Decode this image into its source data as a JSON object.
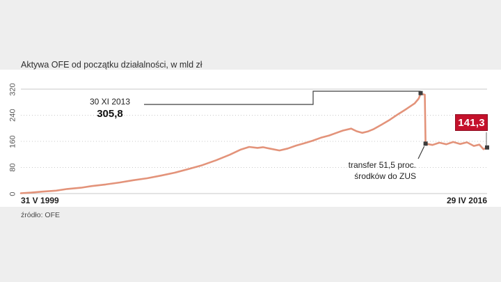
{
  "title": "Aktywa OFE od początku działalności, w mld zł",
  "source": "źródło: OFE",
  "x_axis": {
    "start_label": "31 V 1999",
    "end_label": "29 IV 2016"
  },
  "y_axis": {
    "ticks": [
      0,
      80,
      160,
      240,
      320
    ]
  },
  "annotations": {
    "peak": {
      "date": "30 XI 2013",
      "value": "305,8"
    },
    "transfer": {
      "line1": "transfer 51,5 proc.",
      "line2": "środków do ZUS"
    },
    "end_badge": {
      "value": "141,3",
      "color": "#c4112b"
    }
  },
  "colors": {
    "line": "#e3937a",
    "marker": "#3d3d3d",
    "grid": "#c8c8c8",
    "callout": "#3d3d3d"
  },
  "chart_data": {
    "type": "line",
    "title": "Aktywa OFE od początku działalności, w mld zł",
    "ylabel": "mld zł",
    "ylim": [
      0,
      320
    ],
    "x_range": [
      "31 V 1999",
      "29 IV 2016"
    ],
    "grid": "horizontal",
    "legend": "none",
    "series": [
      {
        "name": "Aktywa OFE",
        "color": "#e3937a",
        "points": [
          [
            1999.42,
            1
          ],
          [
            1999.8,
            3
          ],
          [
            2000.2,
            6
          ],
          [
            2000.7,
            9
          ],
          [
            2001.1,
            14
          ],
          [
            2001.6,
            18
          ],
          [
            2002.0,
            23
          ],
          [
            2002.5,
            28
          ],
          [
            2003.0,
            34
          ],
          [
            2003.5,
            41
          ],
          [
            2004.0,
            47
          ],
          [
            2004.5,
            55
          ],
          [
            2005.0,
            64
          ],
          [
            2005.5,
            75
          ],
          [
            2006.0,
            87
          ],
          [
            2006.5,
            102
          ],
          [
            2007.0,
            119
          ],
          [
            2007.4,
            135
          ],
          [
            2007.7,
            143
          ],
          [
            2008.0,
            140
          ],
          [
            2008.2,
            142
          ],
          [
            2008.5,
            137
          ],
          [
            2008.8,
            132
          ],
          [
            2009.1,
            138
          ],
          [
            2009.4,
            147
          ],
          [
            2009.7,
            154
          ],
          [
            2010.0,
            162
          ],
          [
            2010.3,
            171
          ],
          [
            2010.6,
            178
          ],
          [
            2010.9,
            187
          ],
          [
            2011.1,
            193
          ],
          [
            2011.4,
            199
          ],
          [
            2011.6,
            191
          ],
          [
            2011.8,
            186
          ],
          [
            2012.0,
            190
          ],
          [
            2012.2,
            197
          ],
          [
            2012.5,
            211
          ],
          [
            2012.8,
            226
          ],
          [
            2013.1,
            243
          ],
          [
            2013.4,
            259
          ],
          [
            2013.7,
            276
          ],
          [
            2013.85,
            291
          ],
          [
            2013.92,
            305.8
          ],
          [
            2014.07,
            303
          ],
          [
            2014.1,
            153
          ],
          [
            2014.35,
            149
          ],
          [
            2014.6,
            156
          ],
          [
            2014.85,
            151
          ],
          [
            2015.1,
            158
          ],
          [
            2015.35,
            152
          ],
          [
            2015.6,
            157
          ],
          [
            2015.85,
            146
          ],
          [
            2016.05,
            150
          ],
          [
            2016.2,
            136
          ],
          [
            2016.33,
            141.3
          ]
        ]
      }
    ],
    "key_points": {
      "peak": {
        "date": "30 XI 2013",
        "value": 305.8
      },
      "after_transfer": {
        "value": 153,
        "note": "transfer 51,5 proc. środków do ZUS"
      },
      "end": {
        "date": "29 IV 2016",
        "value": 141.3
      }
    }
  }
}
